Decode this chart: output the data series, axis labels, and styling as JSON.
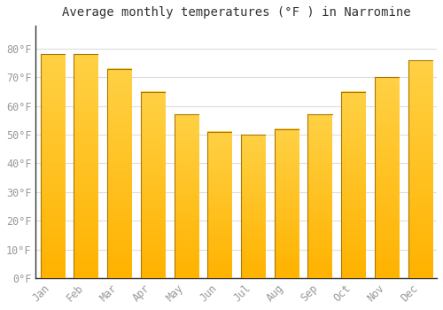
{
  "title": "Average monthly temperatures (°F ) in Narromine",
  "months": [
    "Jan",
    "Feb",
    "Mar",
    "Apr",
    "May",
    "Jun",
    "Jul",
    "Aug",
    "Sep",
    "Oct",
    "Nov",
    "Dec"
  ],
  "values": [
    78,
    78,
    73,
    65,
    57,
    51,
    50,
    52,
    57,
    65,
    70,
    76
  ],
  "bar_color_bottom": "#FFB300",
  "bar_color_top": "#FFCC44",
  "bar_edge_color": "#CC8800",
  "ylim": [
    0,
    88
  ],
  "yticks": [
    0,
    10,
    20,
    30,
    40,
    50,
    60,
    70,
    80
  ],
  "background_color": "#ffffff",
  "grid_color": "#dddddd",
  "title_fontsize": 10,
  "tick_fontsize": 8.5,
  "tick_color": "#999999"
}
